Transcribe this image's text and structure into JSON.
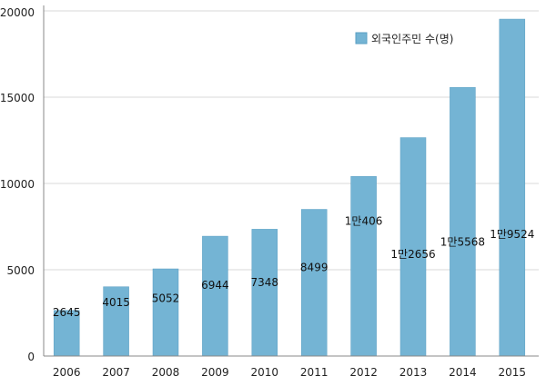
{
  "chart_data": {
    "type": "bar",
    "categories": [
      "2006",
      "2007",
      "2008",
      "2009",
      "2010",
      "2011",
      "2012",
      "2013",
      "2014",
      "2015"
    ],
    "series": [
      {
        "name": "외국인주민 수(명)",
        "values": [
          2645,
          4015,
          5052,
          6944,
          7348,
          8499,
          10406,
          12656,
          15568,
          19524
        ],
        "labels": [
          "2645",
          "4015",
          "5052",
          "6944",
          "7348",
          "8499",
          "1만406",
          "1만2656",
          "1만5568",
          "1만9524"
        ]
      }
    ],
    "yticks": [
      "0",
      "5000",
      "10000",
      "15000",
      "20000"
    ],
    "ylim": [
      0,
      20000
    ],
    "grid": "horizontal",
    "legend": "top-right",
    "colors": {
      "bar": "#74b4d4",
      "bar_edge": "#5a9fc3",
      "grid": "#d8d8d8",
      "axis": "#888888"
    }
  }
}
